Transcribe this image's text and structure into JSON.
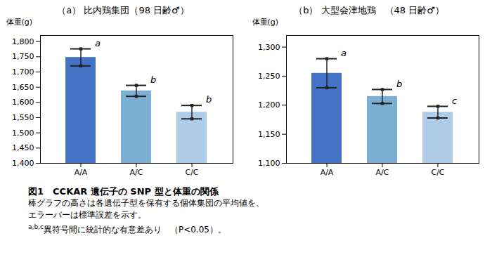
{
  "chart_data": [
    {
      "type": "bar",
      "title": "（a） 比内鶏集団（98 日齢♂）",
      "y_label": "体重(g)",
      "categories": [
        "A/A",
        "A/C",
        "C/C"
      ],
      "values": [
        1748,
        1638,
        1568
      ],
      "errors": [
        28,
        18,
        22
      ],
      "letters": [
        "a",
        "b",
        "b"
      ],
      "colors": [
        "#4472C4",
        "#7BAFD4",
        "#AECCE8"
      ],
      "ylim": [
        1400,
        1820
      ],
      "yticks": [
        {
          "value": 1400,
          "label": "1,400"
        },
        {
          "value": 1450,
          "label": "1,450"
        },
        {
          "value": 1500,
          "label": "1,500"
        },
        {
          "value": 1550,
          "label": "1,550"
        },
        {
          "value": 1600,
          "label": "1,600"
        },
        {
          "value": 1650,
          "label": "1,650"
        },
        {
          "value": 1700,
          "label": "1,700"
        },
        {
          "value": 1750,
          "label": "1,750"
        },
        {
          "value": 1800,
          "label": "1,800"
        }
      ],
      "grid": false
    },
    {
      "type": "bar",
      "title": "（b） 大型会津地鶏　（48 日齢♂）",
      "y_label": "体重(g)",
      "categories": [
        "A/A",
        "A/C",
        "C/C"
      ],
      "values": [
        1255,
        1215,
        1188
      ],
      "errors": [
        25,
        12,
        10
      ],
      "letters": [
        "a",
        "b",
        "c"
      ],
      "colors": [
        "#4472C4",
        "#7BAFD4",
        "#AECCE8"
      ],
      "ylim": [
        1100,
        1320
      ],
      "yticks": [
        {
          "value": 1100,
          "label": "1,100"
        },
        {
          "value": 1150,
          "label": "1,150"
        },
        {
          "value": 1200,
          "label": "1,200"
        },
        {
          "value": 1250,
          "label": "1,250"
        },
        {
          "value": 1300,
          "label": "1,300"
        }
      ],
      "grid": false
    }
  ],
  "caption": {
    "title": "図1　CCKAR 遺伝子の SNP 型と体重の関係",
    "lines": [
      "棒グラフの高さは各遺伝子型を保有する個体集団の平均値を、",
      "エラーバーは標準誤差を示す。"
    ],
    "note_superscript": "a,b,c",
    "note": "異符号間に統計的な有意差あり　（P<0.05）。"
  }
}
